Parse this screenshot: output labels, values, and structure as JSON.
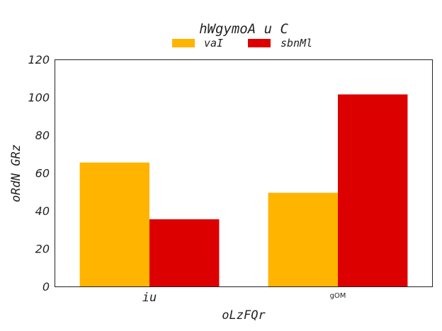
{
  "chart_data": {
    "type": "bar",
    "title": "hWgymoA u C",
    "xlabel": "oLzFQr",
    "ylabel": "oRdN GRz",
    "categories": [
      "iu",
      "gOM"
    ],
    "category_label_styles": [
      "mono",
      "small-sans"
    ],
    "series": [
      {
        "name": "vaI",
        "color": "#FFB400",
        "values": [
          65.5,
          49.5
        ]
      },
      {
        "name": "sbnMl",
        "color": "#DC0000",
        "values": [
          35.5,
          101.5
        ]
      }
    ],
    "ylim": [
      0,
      120
    ],
    "yticks": [
      0,
      20,
      40,
      60,
      80,
      100,
      120
    ],
    "grid": false,
    "legend": {
      "position": "top-center",
      "columns": 2
    }
  }
}
